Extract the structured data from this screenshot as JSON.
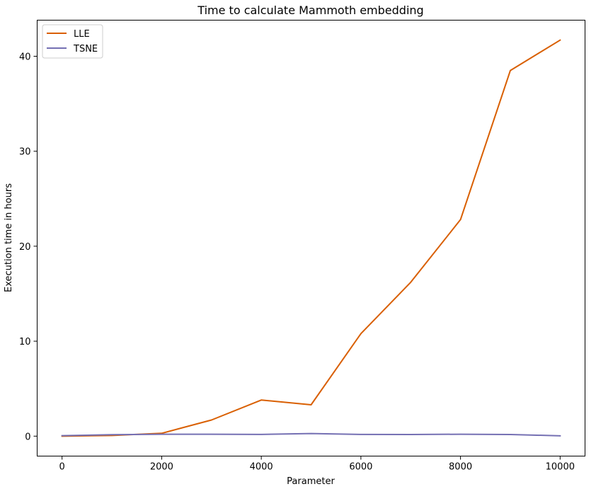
{
  "chart_data": {
    "type": "line",
    "title": "Time to calculate Mammoth embedding",
    "xlabel": "Parameter",
    "ylabel": "Execution time in hours",
    "x": [
      0,
      1000,
      2000,
      3000,
      4000,
      5000,
      6000,
      7000,
      8000,
      9000,
      10000
    ],
    "xlim": [
      -500,
      10500
    ],
    "ylim": [
      -2.1,
      43.8
    ],
    "xticks": [
      0,
      2000,
      4000,
      6000,
      8000,
      10000
    ],
    "xtick_labels": [
      "0",
      "2000",
      "4000",
      "6000",
      "8000",
      "10000"
    ],
    "yticks": [
      0,
      10,
      20,
      30,
      40
    ],
    "ytick_labels": [
      "0",
      "10",
      "20",
      "30",
      "40"
    ],
    "grid": false,
    "legend_position": "top-left",
    "series": [
      {
        "name": "LLE",
        "color": "#d95f02",
        "values": [
          0.0,
          0.07,
          0.3,
          1.7,
          3.8,
          3.3,
          10.8,
          16.2,
          22.8,
          38.5,
          41.7
        ]
      },
      {
        "name": "TSNE",
        "color": "#7570b3",
        "values": [
          0.05,
          0.15,
          0.2,
          0.2,
          0.18,
          0.28,
          0.18,
          0.17,
          0.2,
          0.17,
          0.04
        ]
      }
    ]
  }
}
